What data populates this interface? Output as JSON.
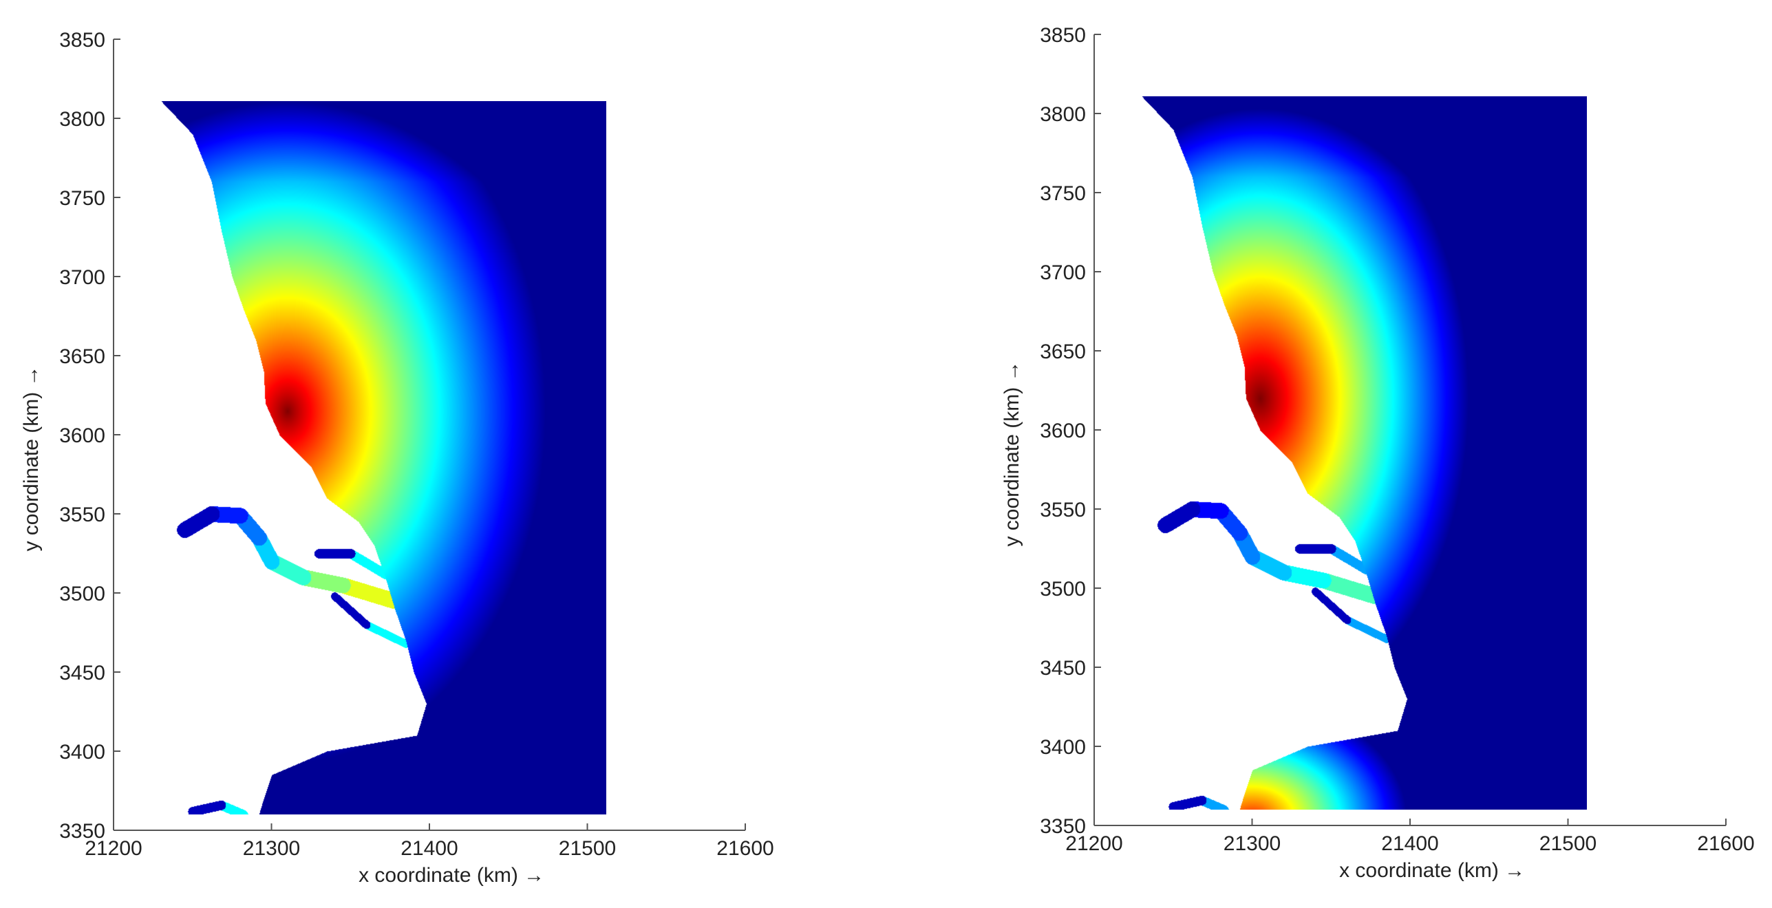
{
  "chart_data": [
    {
      "type": "heatmap",
      "title": "",
      "xlabel": "x coordinate (km) →",
      "ylabel": "y coordinate (km) →",
      "xlim": [
        21200,
        21600
      ],
      "ylim": [
        3350,
        3850
      ],
      "xticks": [
        "21200",
        "21300",
        "21400",
        "21500",
        "21600"
      ],
      "yticks": [
        "3350",
        "3400",
        "3450",
        "3500",
        "3550",
        "3600",
        "3650",
        "3700",
        "3750",
        "3800",
        "3850"
      ],
      "domain": {
        "x": [
          21230,
          21512
        ],
        "y": [
          3360,
          3811
        ]
      },
      "colormap": "jet",
      "colorbar": "none",
      "field_peak": {
        "x": 21310,
        "y": 3615,
        "level": 1.0
      },
      "field_extent": {
        "rx": 125,
        "ry": 170
      },
      "field_exponent": 0.85,
      "river_level": 0.35
    },
    {
      "type": "heatmap",
      "title": "",
      "xlabel": "x coordinate (km) →",
      "ylabel": "y coordinate (km) →",
      "xlim": [
        21200,
        21600
      ],
      "ylim": [
        3350,
        3850
      ],
      "xticks": [
        "21200",
        "21300",
        "21400",
        "21500",
        "21600"
      ],
      "yticks": [
        "3350",
        "3400",
        "3450",
        "3500",
        "3550",
        "3600",
        "3650",
        "3700",
        "3750",
        "3800",
        "3850"
      ],
      "domain": {
        "x": [
          21230,
          21512
        ],
        "y": [
          3360,
          3811
        ]
      },
      "colormap": "jet",
      "colorbar": "none",
      "field_peak": {
        "x": 21305,
        "y": 3620,
        "level": 1.0
      },
      "field_extent": {
        "rx": 105,
        "ry": 160
      },
      "field_exponent": 1.0,
      "river_level": 0.25,
      "secondary_peak": {
        "x": 21300,
        "y": 3355,
        "level": 0.85,
        "rx": 60,
        "ry": 45
      }
    }
  ]
}
